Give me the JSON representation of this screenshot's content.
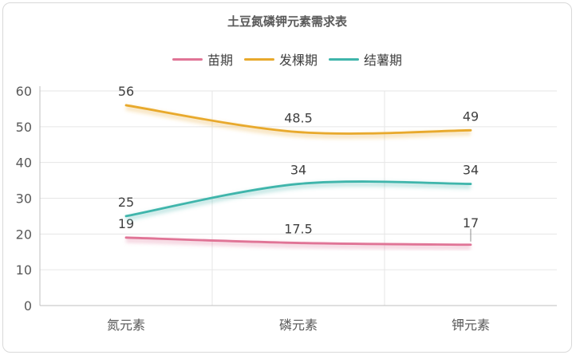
{
  "chart_data": {
    "type": "line",
    "title": "土豆氮磷钾元素需求表",
    "categories": [
      "氮元素",
      "磷元素",
      "钾元素"
    ],
    "series": [
      {
        "name": "苗期",
        "values": [
          19,
          17.5,
          17
        ],
        "color": "#e07496",
        "labels": [
          "19",
          "17.5",
          "17"
        ]
      },
      {
        "name": "发棵期",
        "values": [
          56,
          48.5,
          49
        ],
        "color": "#e8a92c",
        "labels": [
          "56",
          "48.5",
          "49"
        ]
      },
      {
        "name": "结薯期",
        "values": [
          25,
          34,
          34
        ],
        "color": "#3fb5ab",
        "labels": [
          "25",
          "34",
          "34"
        ]
      }
    ],
    "ylim": [
      0,
      60
    ],
    "yticks": [
      "0",
      "10",
      "20",
      "30",
      "40",
      "50",
      "60"
    ],
    "smooth": true,
    "grid": true,
    "legend": "top-center"
  }
}
